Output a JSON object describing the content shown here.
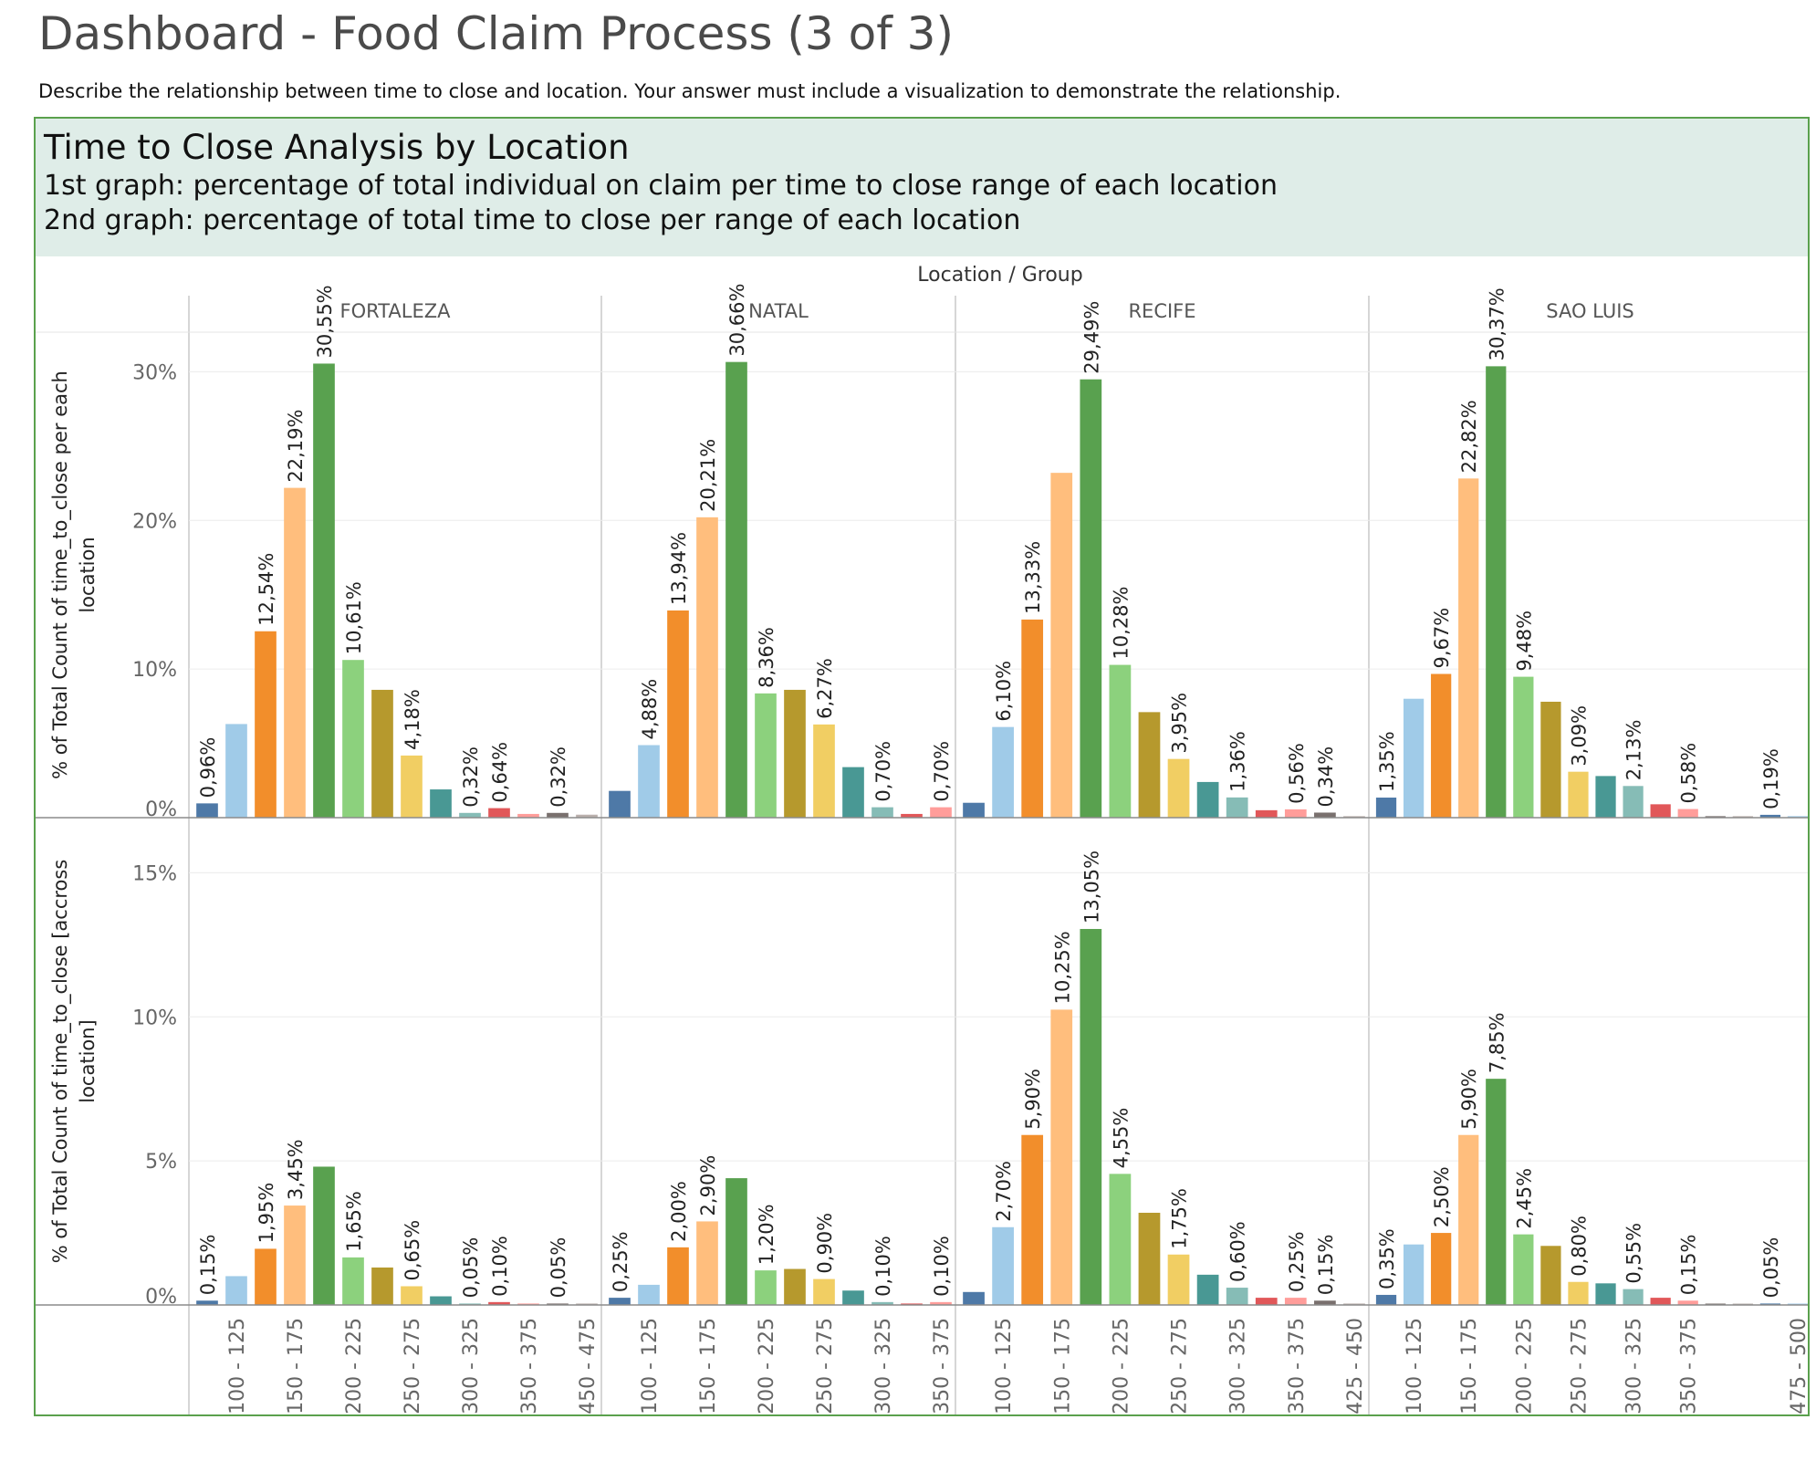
{
  "dashboard": {
    "title": "Dashboard - Food Claim Process (3 of 3)",
    "description": "Describe the relationship between time to close and location. Your answer must include a visualization to demonstrate the relationship."
  },
  "panel": {
    "title": "Time to Close Analysis by Location",
    "subtitle1": "1st graph: percentage of total individual on claim per time to close range of each location",
    "subtitle2": "2nd graph: percentage of total time to close per range of each location"
  },
  "colors": {
    "palette": [
      "#4e79a7",
      "#a0cbe8",
      "#f28e2b",
      "#ffbe7d",
      "#59a14f",
      "#8cd17d",
      "#b6992d",
      "#f1ce63",
      "#499894",
      "#86bcb6",
      "#e15759",
      "#ff9d9a",
      "#79706e",
      "#bab0ac"
    ],
    "frame": "#5aa14d",
    "header_bg": "#dfede8"
  },
  "chart_data": {
    "type": "bar",
    "title": "Time to Close Analysis by Location",
    "column_header": "Location / Group",
    "locations": [
      "FORTALEZA",
      "NATAL",
      "RECIFE",
      "SAO LUIS"
    ],
    "x_tick_labels": [
      [
        "100 - 125",
        "150 - 175",
        "200 - 225",
        "250 - 275",
        "300 - 325",
        "350 - 375",
        "450 - 475"
      ],
      [
        "100 - 125",
        "150 - 175",
        "200 - 225",
        "250 - 275",
        "300 - 325",
        "350 - 375"
      ],
      [
        "100 - 125",
        "150 - 175",
        "200 - 225",
        "250 - 275",
        "300 - 325",
        "350 - 375",
        "425 - 450"
      ],
      [
        "100 - 125",
        "150 - 175",
        "200 - 225",
        "250 - 275",
        "300 - 325",
        "350 - 375",
        "475 - 500"
      ]
    ],
    "rows": [
      {
        "ylabel": "% of Total Count of time_to_close per each location",
        "ylim": [
          0,
          30.7
        ],
        "yticks": [
          0,
          10,
          20,
          30
        ],
        "ytick_labels": [
          "0%",
          "10%",
          "20%",
          "30%"
        ],
        "series": [
          {
            "values": [
              0.96,
              6.3,
              12.54,
              22.19,
              30.55,
              10.61,
              8.6,
              4.18,
              1.9,
              0.32,
              0.64,
              0.25,
              0.32,
              0.2
            ],
            "labels": [
              "0,96%",
              "",
              "12,54%",
              "22,19%",
              "30,55%",
              "10,61%",
              "",
              "4,18%",
              "",
              "0,32%",
              "0,64%",
              "",
              "0,32%",
              ""
            ]
          },
          {
            "values": [
              1.8,
              4.88,
              13.94,
              20.21,
              30.66,
              8.36,
              8.6,
              6.27,
              3.4,
              0.7,
              0.25,
              0.7
            ],
            "labels": [
              "",
              "4,88%",
              "13,94%",
              "20,21%",
              "30,66%",
              "8,36%",
              "",
              "6,27%",
              "",
              "0,70%",
              "",
              "0,70%"
            ]
          },
          {
            "values": [
              1.0,
              6.1,
              13.33,
              23.2,
              29.49,
              10.28,
              7.1,
              3.95,
              2.4,
              1.36,
              0.5,
              0.56,
              0.34,
              0.1
            ],
            "labels": [
              "",
              "6,10%",
              "13,33%",
              "",
              "29,49%",
              "10,28%",
              "",
              "3,95%",
              "",
              "1,36%",
              "",
              "0,56%",
              "0,34%",
              ""
            ]
          },
          {
            "values": [
              1.35,
              8.0,
              9.67,
              22.82,
              30.37,
              9.48,
              7.8,
              3.09,
              2.8,
              2.13,
              0.9,
              0.58,
              0.1,
              0.1,
              0.19,
              0.1
            ],
            "labels": [
              "1,35%",
              "",
              "9,67%",
              "22,82%",
              "30,37%",
              "9,48%",
              "",
              "3,09%",
              "",
              "2,13%",
              "",
              "0,58%",
              "",
              "",
              "0,19%",
              ""
            ]
          }
        ]
      },
      {
        "ylabel": "% of Total Count of time_to_close [accross location]",
        "ylim": [
          0,
          15.9
        ],
        "yticks": [
          0,
          5,
          10,
          15
        ],
        "ytick_labels": [
          "0%",
          "5%",
          "10%",
          "15%"
        ],
        "series": [
          {
            "values": [
              0.15,
              1.0,
              1.95,
              3.45,
              4.8,
              1.65,
              1.3,
              0.65,
              0.3,
              0.05,
              0.1,
              0.05,
              0.05,
              0.05
            ],
            "labels": [
              "0,15%",
              "",
              "1,95%",
              "3,45%",
              "",
              "1,65%",
              "",
              "0,65%",
              "",
              "0,05%",
              "0,10%",
              "",
              "0,05%",
              ""
            ]
          },
          {
            "values": [
              0.25,
              0.7,
              2.0,
              2.9,
              4.4,
              1.2,
              1.25,
              0.9,
              0.5,
              0.1,
              0.05,
              0.1
            ],
            "labels": [
              "0,25%",
              "",
              "2,00%",
              "2,90%",
              "",
              "1,20%",
              "",
              "0,90%",
              "",
              "0,10%",
              "",
              "0,10%"
            ]
          },
          {
            "values": [
              0.45,
              2.7,
              5.9,
              10.25,
              13.05,
              4.55,
              3.2,
              1.75,
              1.05,
              0.6,
              0.25,
              0.25,
              0.15,
              0.05
            ],
            "labels": [
              "",
              "2,70%",
              "5,90%",
              "10,25%",
              "13,05%",
              "4,55%",
              "",
              "1,75%",
              "",
              "0,60%",
              "",
              "0,25%",
              "0,15%",
              ""
            ]
          },
          {
            "values": [
              0.35,
              2.1,
              2.5,
              5.9,
              7.85,
              2.45,
              2.05,
              0.8,
              0.75,
              0.55,
              0.25,
              0.15,
              0.03,
              0.03,
              0.05,
              0.03
            ],
            "labels": [
              "0,35%",
              "",
              "2,50%",
              "5,90%",
              "7,85%",
              "2,45%",
              "",
              "0,80%",
              "",
              "0,55%",
              "",
              "0,15%",
              "",
              "",
              "0,05%",
              ""
            ]
          }
        ]
      }
    ]
  }
}
